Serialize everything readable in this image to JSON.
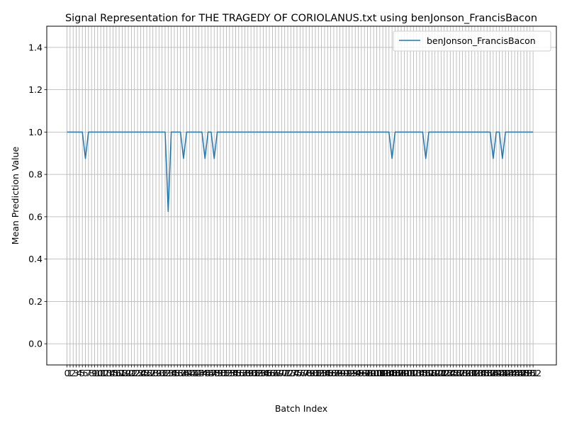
{
  "chart_data": {
    "type": "line",
    "title": "Signal Representation for THE TRAGEDY OF CORIOLANUS.txt using benJonson_FrancisBacon",
    "xlabel": "Batch Index",
    "ylabel": "Mean Prediction Value",
    "x_range": [
      0,
      153
    ],
    "ylim": [
      -0.1,
      1.5
    ],
    "yticks": [
      0.0,
      0.2,
      0.4,
      0.6,
      0.8,
      1.0,
      1.2,
      1.4
    ],
    "ytick_labels": [
      "0.0",
      "0.2",
      "0.4",
      "0.6",
      "0.8",
      "1.0",
      "1.2",
      "1.4"
    ],
    "grid": true,
    "legend_position": "top-right",
    "series": [
      {
        "name": "benJonson_FrancisBacon",
        "color": "#1f77b4",
        "values": [
          1,
          1,
          1,
          1,
          1,
          1,
          0.875,
          1,
          1,
          1,
          1,
          1,
          1,
          1,
          1,
          1,
          1,
          1,
          1,
          1,
          1,
          1,
          1,
          1,
          1,
          1,
          1,
          1,
          1,
          1,
          1,
          1,
          1,
          0.625,
          1,
          1,
          1,
          1,
          0.875,
          1,
          1,
          1,
          1,
          1,
          1,
          0.875,
          1,
          1,
          0.875,
          1,
          1,
          1,
          1,
          1,
          1,
          1,
          1,
          1,
          1,
          1,
          1,
          1,
          1,
          1,
          1,
          1,
          1,
          1,
          1,
          1,
          1,
          1,
          1,
          1,
          1,
          1,
          1,
          1,
          1,
          1,
          1,
          1,
          1,
          1,
          1,
          1,
          1,
          1,
          1,
          1,
          1,
          1,
          1,
          1,
          1,
          1,
          1,
          1,
          1,
          1,
          1,
          1,
          1,
          1,
          1,
          1,
          0.875,
          1,
          1,
          1,
          1,
          1,
          1,
          1,
          1,
          1,
          1,
          0.875,
          1,
          1,
          1,
          1,
          1,
          1,
          1,
          1,
          1,
          1,
          1,
          1,
          1,
          1,
          1,
          1,
          1,
          1,
          1,
          1,
          1,
          0.875,
          1,
          1,
          0.875,
          1,
          1,
          1,
          1,
          1,
          1,
          1,
          1,
          1,
          1
        ]
      }
    ]
  }
}
